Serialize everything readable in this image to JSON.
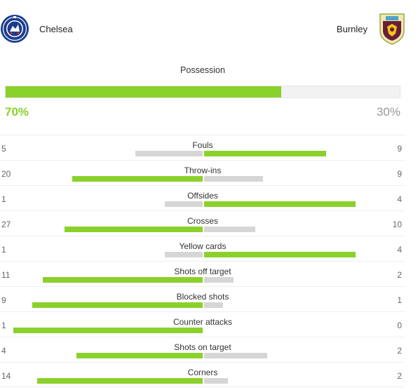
{
  "colors": {
    "accent": "#8ad12b",
    "muted": "#d6d6d6",
    "home_pct": "#8ad12b"
  },
  "teams": {
    "home": {
      "name": "Chelsea",
      "crest": "chelsea-crest-icon"
    },
    "away": {
      "name": "Burnley",
      "crest": "burnley-crest-icon"
    }
  },
  "possession": {
    "title": "Possession",
    "home": 70,
    "away": 30,
    "home_label": "70%",
    "away_label": "30%"
  },
  "stats": [
    {
      "label": "Fouls",
      "home": "5",
      "away": "9"
    },
    {
      "label": "Throw-ins",
      "home": "20",
      "away": "9"
    },
    {
      "label": "Offsides",
      "home": "1",
      "away": "4"
    },
    {
      "label": "Crosses",
      "home": "27",
      "away": "10"
    },
    {
      "label": "Yellow cards",
      "home": "1",
      "away": "4"
    },
    {
      "label": "Shots off target",
      "home": "11",
      "away": "2"
    },
    {
      "label": "Blocked shots",
      "home": "9",
      "away": "1"
    },
    {
      "label": "Counter attacks",
      "home": "1",
      "away": "0"
    },
    {
      "label": "Shots on target",
      "home": "4",
      "away": "2"
    },
    {
      "label": "Corners",
      "home": "14",
      "away": "2"
    }
  ]
}
